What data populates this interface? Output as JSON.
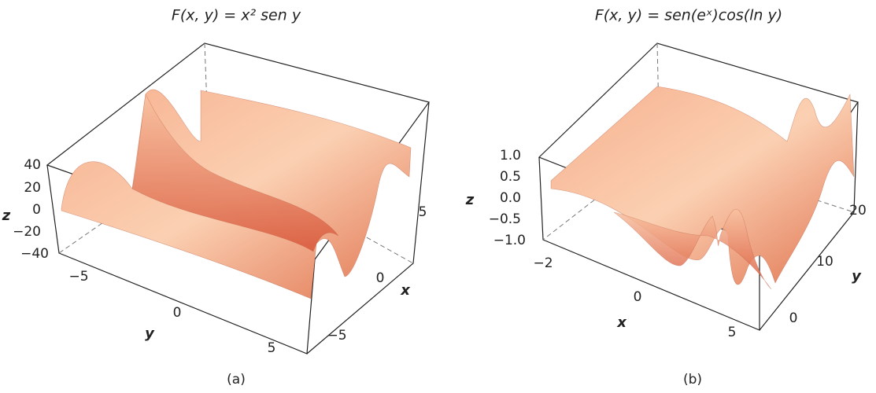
{
  "panels": [
    {
      "title": "F(x, y) = x² sen y",
      "z_label": "z",
      "x_label": "x",
      "y_label": "y",
      "z_ticks": [
        "40",
        "20",
        "0",
        "−20",
        "−40"
      ],
      "y_ticks": [
        "−5",
        "0",
        "5"
      ],
      "x_ticks": [
        "5",
        "0",
        "−5"
      ],
      "caption": "(a)"
    },
    {
      "title": "F(x, y) = sen(eˣ)cos(ln y)",
      "z_label": "z",
      "x_label": "x",
      "y_label": "y",
      "z_ticks": [
        "1.0",
        "0.5",
        "0.0",
        "−0.5",
        "−1.0"
      ],
      "x_ticks": [
        "−2",
        "0",
        "5"
      ],
      "y_ticks": [
        "0",
        "10",
        "20"
      ],
      "caption": "(b)"
    }
  ]
}
